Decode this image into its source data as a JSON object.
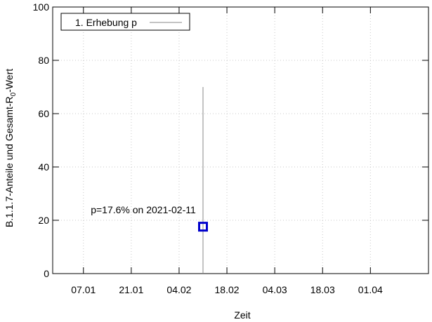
{
  "chart_data": {
    "type": "scatter",
    "title": "",
    "xlabel": "Zeit",
    "ylabel_main": "B.1.1.7-Anteile und Gesamt-R",
    "ylabel_sub": "0",
    "ylabel_end": "-Wert",
    "x_range": [
      "2020-12-29",
      "2021-04-18"
    ],
    "x_tick_dates": [
      "2021-01-07",
      "2021-01-21",
      "2021-02-04",
      "2021-02-18",
      "2021-03-04",
      "2021-03-18",
      "2021-04-01"
    ],
    "x_tick_labels": [
      "07.01",
      "21.01",
      "04.02",
      "18.02",
      "04.03",
      "18.03",
      "01.04"
    ],
    "ylim": [
      0,
      100
    ],
    "y_ticks": [
      0,
      20,
      40,
      60,
      80,
      100
    ],
    "y_tick_labels": [
      "0",
      "20",
      "40",
      "60",
      "80",
      "100"
    ],
    "grid": true,
    "legend_position": "top-left",
    "series": [
      {
        "name": "1. Erhebung p",
        "points": [
          {
            "x": "2021-02-11",
            "y": 17.6,
            "error_low": 0,
            "error_high": 70
          }
        ]
      }
    ],
    "annotations": [
      {
        "text": "p=17.6% on 2021-02-11",
        "x": "2021-02-11",
        "y": 17.6
      }
    ],
    "colors": {
      "marker": "#0000cc",
      "errorbar": "#888888",
      "grid": "#c8c8c8",
      "axis": "#000000"
    }
  }
}
